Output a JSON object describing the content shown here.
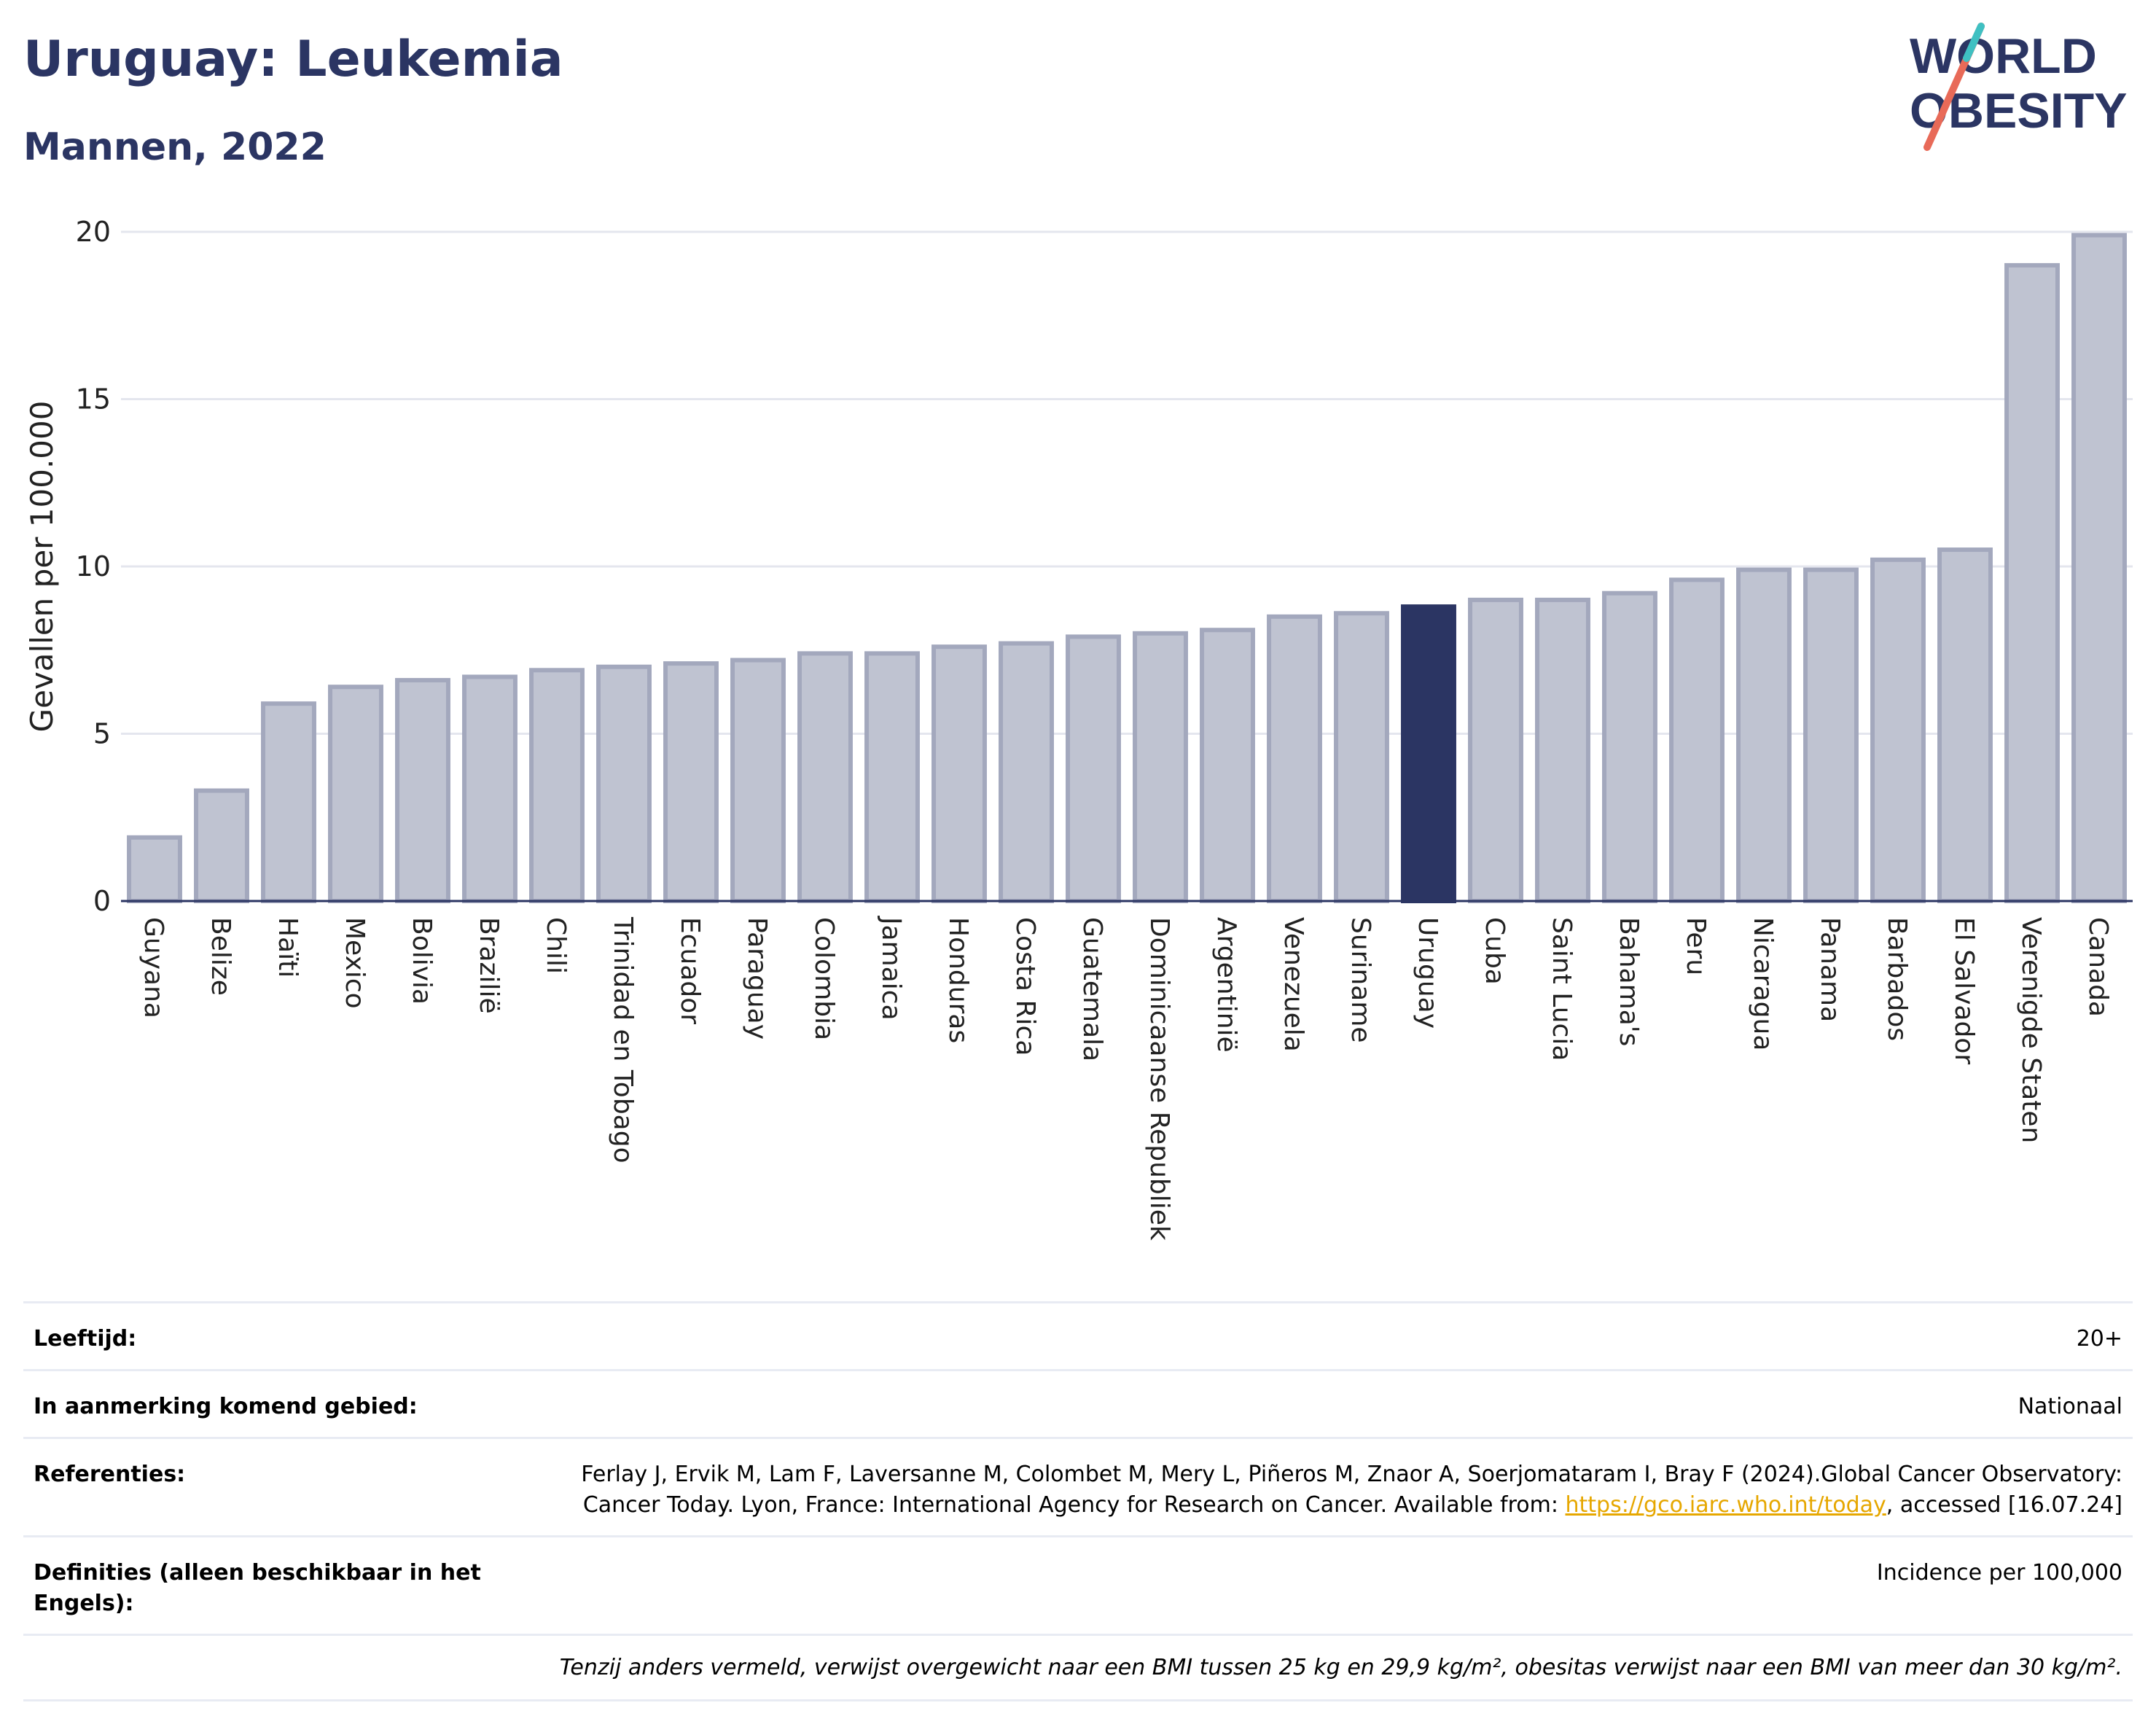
{
  "header": {
    "title": "Uruguay: Leukemia",
    "subtitle": "Mannen, 2022"
  },
  "logo": {
    "line1": "WORLD",
    "line2": "OBESITY"
  },
  "chart_data": {
    "type": "bar",
    "ylabel": "Gevallen per 100.000",
    "xlabel": "",
    "ylim": [
      0,
      20
    ],
    "yticks": [
      0,
      5,
      10,
      15,
      20
    ],
    "grid": true,
    "highlight": "Uruguay",
    "colors": {
      "bar": "#bfc3d1",
      "bar_border": "#a3a8bd",
      "highlight": "#2b3563"
    },
    "categories": [
      "Guyana",
      "Belize",
      "Haïti",
      "Mexico",
      "Bolivia",
      "Brazilië",
      "Chili",
      "Trinidad en Tobago",
      "Ecuador",
      "Paraguay",
      "Colombia",
      "Jamaica",
      "Honduras",
      "Costa Rica",
      "Guatemala",
      "Dominicaanse Republiek",
      "Argentinië",
      "Venezuela",
      "Suriname",
      "Uruguay",
      "Cuba",
      "Saint Lucia",
      "Bahama's",
      "Peru",
      "Nicaragua",
      "Panama",
      "Barbados",
      "El Salvador",
      "Verenigde Staten",
      "Canada"
    ],
    "values": [
      1.9,
      3.3,
      5.9,
      6.4,
      6.6,
      6.7,
      6.9,
      7.0,
      7.1,
      7.2,
      7.4,
      7.4,
      7.6,
      7.7,
      7.9,
      8.0,
      8.1,
      8.5,
      8.6,
      8.8,
      9.0,
      9.0,
      9.2,
      9.6,
      9.9,
      9.9,
      10.2,
      10.5,
      19.0,
      19.9
    ]
  },
  "meta": {
    "age_label": "Leeftijd:",
    "age_value": "20+",
    "area_label": "In aanmerking komend gebied:",
    "area_value": "Nationaal",
    "ref_label": "Referenties:",
    "ref_text": "Ferlay J, Ervik M, Lam F, Laversanne M, Colombet M, Mery L, Piñeros M, Znaor A, Soerjomataram I, Bray F (2024).Global Cancer Observatory: Cancer Today. Lyon, France: International Agency for Research on Cancer. Available from: ",
    "ref_link": "https://gco.iarc.who.int/today",
    "ref_tail": ", accessed [16.07.24]",
    "def_label": "Definities (alleen beschikbaar in het Engels):",
    "def_value": "Incidence per 100,000",
    "note": "Tenzij anders vermeld, verwijst overgewicht naar een BMI tussen 25 kg en 29,9 kg/m², obesitas verwijst naar een BMI van meer dan 30 kg/m²."
  }
}
